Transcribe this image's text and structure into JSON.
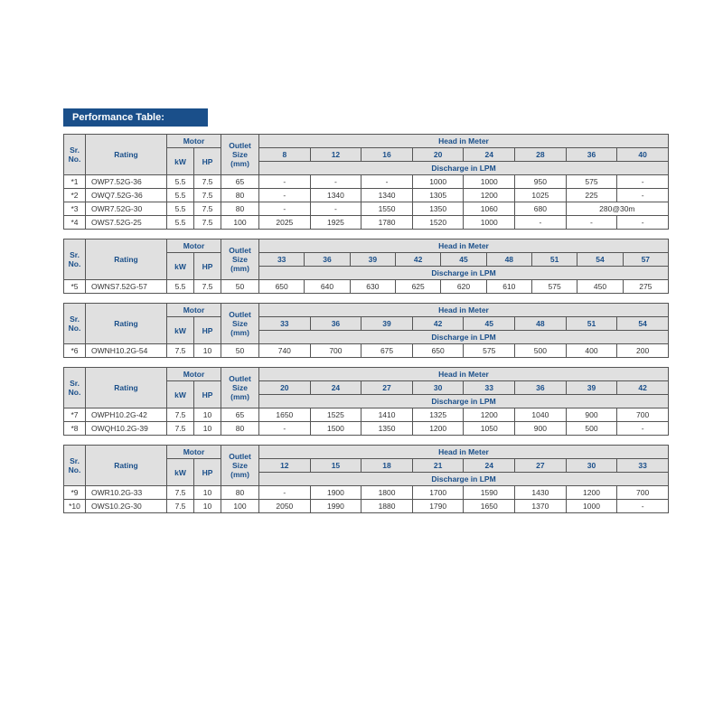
{
  "title": "Performance Table:",
  "labels": {
    "sr": "Sr. No.",
    "rating": "Rating",
    "motor": "Motor",
    "kw": "kW",
    "hp": "HP",
    "outlet": "Outlet Size (mm)",
    "head": "Head in Meter",
    "discharge": "Discharge in LPM"
  },
  "tables": [
    {
      "heads": [
        "8",
        "12",
        "16",
        "20",
        "24",
        "28",
        "36",
        "40"
      ],
      "rows": [
        {
          "sr": "*1",
          "rating": "OWP7.52G-36",
          "kw": "5.5",
          "hp": "7.5",
          "outlet": "65",
          "d": [
            "-",
            "-",
            "-",
            "1000",
            "1000",
            "950",
            "575",
            "-"
          ]
        },
        {
          "sr": "*2",
          "rating": "OWQ7.52G-36",
          "kw": "5.5",
          "hp": "7.5",
          "outlet": "80",
          "d": [
            "-",
            "1340",
            "1340",
            "1305",
            "1200",
            "1025",
            "225",
            "-"
          ]
        },
        {
          "sr": "*3",
          "rating": "OWR7.52G-30",
          "kw": "5.5",
          "hp": "7.5",
          "outlet": "80",
          "d": [
            "-",
            "-",
            "1550",
            "1350",
            "1060",
            "680",
            {
              "span": 2,
              "v": "280@30m"
            }
          ]
        },
        {
          "sr": "*4",
          "rating": "OWS7.52G-25",
          "kw": "5.5",
          "hp": "7.5",
          "outlet": "100",
          "d": [
            "2025",
            "1925",
            "1780",
            "1520",
            "1000",
            "-",
            "-",
            "-"
          ]
        }
      ]
    },
    {
      "heads": [
        "33",
        "36",
        "39",
        "42",
        "45",
        "48",
        "51",
        "54",
        "57"
      ],
      "rows": [
        {
          "sr": "*5",
          "rating": "OWNS7.52G-57",
          "kw": "5.5",
          "hp": "7.5",
          "outlet": "50",
          "d": [
            "650",
            "640",
            "630",
            "625",
            "620",
            "610",
            "575",
            "450",
            "275"
          ]
        }
      ]
    },
    {
      "heads": [
        "33",
        "36",
        "39",
        "42",
        "45",
        "48",
        "51",
        "54"
      ],
      "rows": [
        {
          "sr": "*6",
          "rating": "OWNH10.2G-54",
          "kw": "7.5",
          "hp": "10",
          "outlet": "50",
          "d": [
            "740",
            "700",
            "675",
            "650",
            "575",
            "500",
            "400",
            "200"
          ]
        }
      ]
    },
    {
      "heads": [
        "20",
        "24",
        "27",
        "30",
        "33",
        "36",
        "39",
        "42"
      ],
      "rows": [
        {
          "sr": "*7",
          "rating": "OWPH10.2G-42",
          "kw": "7.5",
          "hp": "10",
          "outlet": "65",
          "d": [
            "1650",
            "1525",
            "1410",
            "1325",
            "1200",
            "1040",
            "900",
            "700"
          ]
        },
        {
          "sr": "*8",
          "rating": "OWQH10.2G-39",
          "kw": "7.5",
          "hp": "10",
          "outlet": "80",
          "d": [
            "-",
            "1500",
            "1350",
            "1200",
            "1050",
            "900",
            "500",
            "-"
          ]
        }
      ]
    },
    {
      "heads": [
        "12",
        "15",
        "18",
        "21",
        "24",
        "27",
        "30",
        "33"
      ],
      "rows": [
        {
          "sr": "*9",
          "rating": "OWR10.2G-33",
          "kw": "7.5",
          "hp": "10",
          "outlet": "80",
          "d": [
            "-",
            "1900",
            "1800",
            "1700",
            "1590",
            "1430",
            "1200",
            "700"
          ]
        },
        {
          "sr": "*10",
          "rating": "OWS10.2G-30",
          "kw": "7.5",
          "hp": "10",
          "outlet": "100",
          "d": [
            "2050",
            "1990",
            "1880",
            "1790",
            "1650",
            "1370",
            "1000",
            "-"
          ]
        }
      ]
    }
  ]
}
